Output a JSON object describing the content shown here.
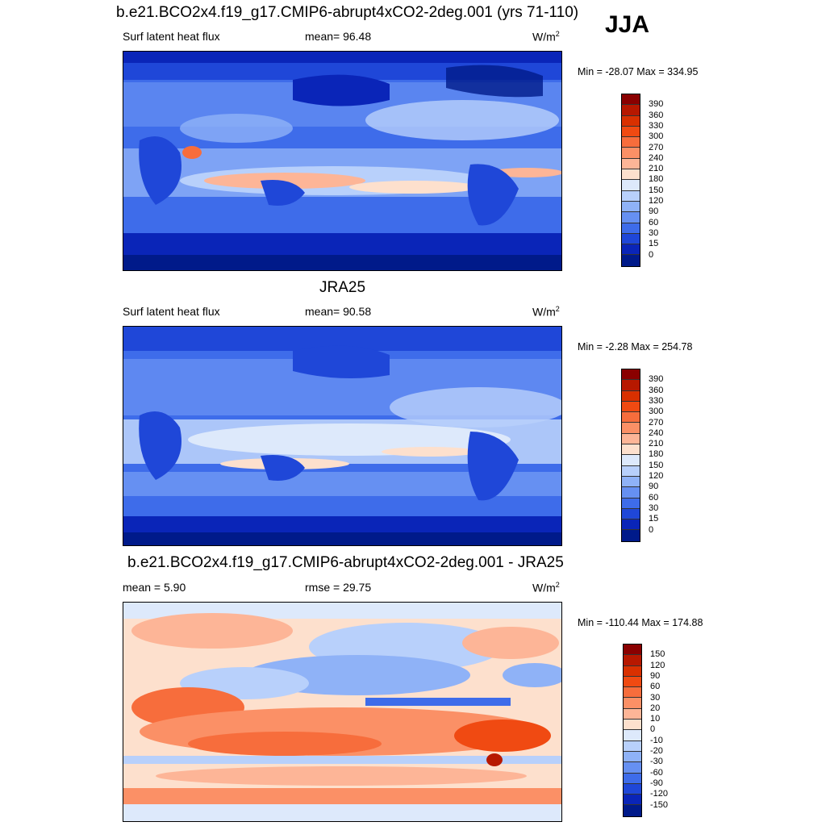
{
  "season": "JJA",
  "panels": [
    {
      "title": "b.e21.BCO2x4.f19_g17.CMIP6-abrupt4xCO2-2deg.001 (yrs 71-110)",
      "left_label": "Surf latent heat flux",
      "center_label": "mean=  96.48",
      "units": "W/m",
      "units_sup": "2",
      "minmax": "Min = -28.07 Max = 334.95",
      "scale": "abs"
    },
    {
      "title": "JRA25",
      "left_label": "Surf latent heat flux",
      "center_label": "mean=  90.58",
      "units": "W/m",
      "units_sup": "2",
      "minmax": "Min =  -2.28 Max = 254.78",
      "scale": "abs"
    },
    {
      "title": "b.e21.BCO2x4.f19_g17.CMIP6-abrupt4xCO2-2deg.001 - JRA25",
      "left_label": "mean =   5.90",
      "center_label": "rmse =  29.75",
      "units": "W/m",
      "units_sup": "2",
      "minmax": "Min = -110.44 Max = 174.88",
      "scale": "diff"
    }
  ],
  "colorbars": {
    "abs": {
      "labels": [
        "390",
        "360",
        "330",
        "300",
        "270",
        "240",
        "210",
        "180",
        "150",
        "120",
        "90",
        "60",
        "30",
        "15",
        "0"
      ],
      "colors": [
        "#8a0000",
        "#b71800",
        "#d93000",
        "#f04a12",
        "#f76d3c",
        "#fb9066",
        "#fdb597",
        "#fde0cd",
        "#dde9fb",
        "#b8d0fb",
        "#8fb2f7",
        "#6690f2",
        "#3e6cea",
        "#1f47d8",
        "#0a25b8",
        "#001a8a"
      ]
    },
    "diff": {
      "labels": [
        "150",
        "120",
        "90",
        "60",
        "30",
        "20",
        "10",
        "0",
        "-10",
        "-20",
        "-30",
        "-60",
        "-90",
        "-120",
        "-150"
      ],
      "colors": [
        "#8a0000",
        "#b71800",
        "#d93000",
        "#f04a12",
        "#f76d3c",
        "#fb9066",
        "#fdb597",
        "#fde0cd",
        "#dde9fb",
        "#b8d0fb",
        "#8fb2f7",
        "#6690f2",
        "#3e6cea",
        "#1f47d8",
        "#0a25b8",
        "#001a8a"
      ]
    }
  }
}
